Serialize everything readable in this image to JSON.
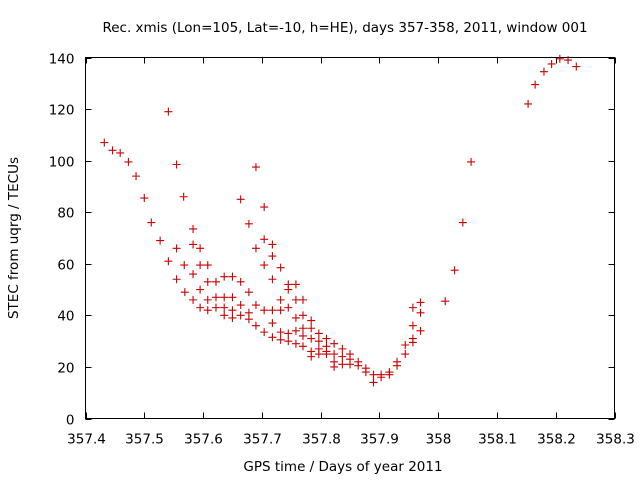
{
  "chart_data": {
    "type": "scatter",
    "title": "Rec. xmis (Lon=105, Lat=-10, h=HE), days 357-358, 2011, window 001",
    "xlabel": "GPS time / Days of year 2011",
    "ylabel": "STEC from uqrg / TECUs",
    "xlim": [
      357.4,
      358.3
    ],
    "ylim": [
      0,
      140
    ],
    "xticks": [
      357.4,
      357.5,
      357.6,
      357.7,
      357.8,
      357.9,
      358.0,
      358.1,
      358.2,
      358.3
    ],
    "xtick_labels": [
      "357.4",
      "357.5",
      "357.6",
      "357.7",
      "357.8",
      "357.9",
      "358",
      "358.1",
      "358.2",
      "358.3"
    ],
    "yticks": [
      0,
      20,
      40,
      60,
      80,
      100,
      120,
      140
    ],
    "ytick_labels": [
      "0",
      "20",
      "40",
      "60",
      "80",
      "100",
      "120",
      "140"
    ],
    "grid": false,
    "marker": "+",
    "color": "#cc0000",
    "series": [
      {
        "name": "STEC",
        "points": [
          [
            357.432,
            107
          ],
          [
            357.446,
            104
          ],
          [
            357.459,
            103
          ],
          [
            357.473,
            99.5
          ],
          [
            357.486,
            94
          ],
          [
            357.5,
            85.5
          ],
          [
            357.512,
            76
          ],
          [
            357.527,
            69
          ],
          [
            357.541,
            119
          ],
          [
            357.541,
            61
          ],
          [
            357.555,
            98.5
          ],
          [
            357.555,
            66
          ],
          [
            357.555,
            54
          ],
          [
            357.567,
            86
          ],
          [
            357.568,
            59.5
          ],
          [
            357.569,
            49
          ],
          [
            357.583,
            73.5
          ],
          [
            357.583,
            67.5
          ],
          [
            357.583,
            56
          ],
          [
            357.583,
            46
          ],
          [
            357.595,
            66
          ],
          [
            357.595,
            59.5
          ],
          [
            357.595,
            50
          ],
          [
            357.595,
            43
          ],
          [
            357.608,
            59.5
          ],
          [
            357.608,
            53
          ],
          [
            357.608,
            46
          ],
          [
            357.608,
            42
          ],
          [
            357.622,
            53
          ],
          [
            357.622,
            47
          ],
          [
            357.622,
            43
          ],
          [
            357.636,
            55
          ],
          [
            357.636,
            47
          ],
          [
            357.636,
            43
          ],
          [
            357.636,
            40
          ],
          [
            357.65,
            55
          ],
          [
            357.65,
            47
          ],
          [
            357.65,
            42
          ],
          [
            357.65,
            39
          ],
          [
            357.664,
            85
          ],
          [
            357.664,
            53
          ],
          [
            357.664,
            44
          ],
          [
            357.664,
            40
          ],
          [
            357.678,
            75.5
          ],
          [
            357.678,
            49
          ],
          [
            357.678,
            41
          ],
          [
            357.678,
            38.5
          ],
          [
            357.69,
            97.5
          ],
          [
            357.69,
            66
          ],
          [
            357.69,
            44
          ],
          [
            357.69,
            36
          ],
          [
            357.704,
            82
          ],
          [
            357.704,
            69.5
          ],
          [
            357.704,
            59.5
          ],
          [
            357.704,
            42
          ],
          [
            357.704,
            33.5
          ],
          [
            357.718,
            67.5
          ],
          [
            357.718,
            63
          ],
          [
            357.718,
            54
          ],
          [
            357.718,
            42
          ],
          [
            357.718,
            37
          ],
          [
            357.718,
            31.5
          ],
          [
            357.732,
            58.5
          ],
          [
            357.732,
            46
          ],
          [
            357.732,
            42
          ],
          [
            357.732,
            33.5
          ],
          [
            357.732,
            30.5
          ],
          [
            357.745,
            52
          ],
          [
            357.745,
            50
          ],
          [
            357.745,
            43
          ],
          [
            357.745,
            33
          ],
          [
            357.745,
            30
          ],
          [
            357.758,
            52
          ],
          [
            357.758,
            46
          ],
          [
            357.758,
            39
          ],
          [
            357.758,
            34
          ],
          [
            357.758,
            29
          ],
          [
            357.77,
            46
          ],
          [
            357.77,
            40
          ],
          [
            357.77,
            35
          ],
          [
            357.77,
            32
          ],
          [
            357.77,
            28
          ],
          [
            357.784,
            38
          ],
          [
            357.784,
            35
          ],
          [
            357.784,
            31
          ],
          [
            357.784,
            26
          ],
          [
            357.784,
            24
          ],
          [
            357.797,
            33
          ],
          [
            357.797,
            30
          ],
          [
            357.797,
            27
          ],
          [
            357.797,
            25
          ],
          [
            357.81,
            31
          ],
          [
            357.81,
            28
          ],
          [
            357.81,
            26
          ],
          [
            357.81,
            25
          ],
          [
            357.823,
            29
          ],
          [
            357.823,
            25
          ],
          [
            357.823,
            22
          ],
          [
            357.823,
            20
          ],
          [
            357.837,
            27
          ],
          [
            357.837,
            24
          ],
          [
            357.837,
            21
          ],
          [
            357.85,
            25
          ],
          [
            357.85,
            23
          ],
          [
            357.85,
            21
          ],
          [
            357.864,
            22
          ],
          [
            357.864,
            20.5
          ],
          [
            357.877,
            19.5
          ],
          [
            357.877,
            18
          ],
          [
            357.89,
            17
          ],
          [
            357.89,
            14
          ],
          [
            357.903,
            17
          ],
          [
            357.903,
            16
          ],
          [
            357.917,
            18
          ],
          [
            357.917,
            17
          ],
          [
            357.93,
            22
          ],
          [
            357.93,
            20.5
          ],
          [
            357.944,
            28.5
          ],
          [
            357.944,
            25
          ],
          [
            357.957,
            43
          ],
          [
            357.957,
            36
          ],
          [
            357.957,
            31
          ],
          [
            357.957,
            29.5
          ],
          [
            357.97,
            45
          ],
          [
            357.97,
            41
          ],
          [
            357.97,
            34
          ],
          [
            358.012,
            45.5
          ],
          [
            358.028,
            57.5
          ],
          [
            358.042,
            76
          ],
          [
            358.056,
            99.5
          ],
          [
            358.153,
            122
          ],
          [
            358.165,
            129.5
          ],
          [
            358.18,
            134.5
          ],
          [
            358.193,
            137.5
          ],
          [
            358.207,
            139.5
          ],
          [
            358.221,
            139
          ],
          [
            358.235,
            136.5
          ]
        ]
      }
    ]
  }
}
